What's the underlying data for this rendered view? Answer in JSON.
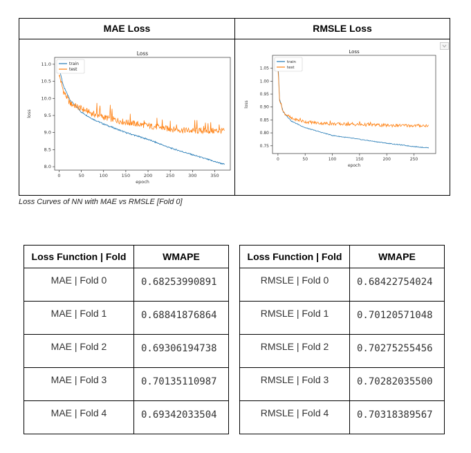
{
  "comparison": {
    "headers": [
      "MAE Loss",
      "RMSLE Loss"
    ],
    "caption": "Loss Curves of NN with MAE vs RMSLE [Fold 0]"
  },
  "chart_data": [
    {
      "type": "line",
      "title": "Loss",
      "xlabel": "epoch",
      "ylabel": "loss",
      "xlim": [
        -10,
        385
      ],
      "ylim": [
        7.9,
        11.2
      ],
      "xticks": [
        0,
        50,
        100,
        150,
        200,
        250,
        300,
        350
      ],
      "yticks": [
        8.0,
        8.5,
        9.0,
        9.5,
        10.0,
        10.5,
        11.0
      ],
      "ytick_labels": [
        "8.0",
        "8.5",
        "9.0",
        "9.5",
        "10.0",
        "10.5",
        "11.0"
      ],
      "legend": [
        "train",
        "test"
      ],
      "legend_position": "top-left",
      "series": [
        {
          "name": "train",
          "color": "#1f77b4",
          "x": [
            0,
            10,
            25,
            50,
            75,
            100,
            150,
            200,
            250,
            300,
            350,
            372
          ],
          "y": [
            10.9,
            10.35,
            9.95,
            9.6,
            9.4,
            9.25,
            9.0,
            8.8,
            8.55,
            8.35,
            8.15,
            8.07
          ]
        },
        {
          "name": "test",
          "color": "#ff7f0e",
          "x": [
            0,
            10,
            25,
            50,
            75,
            100,
            150,
            200,
            250,
            300,
            350,
            372
          ],
          "y": [
            10.7,
            10.2,
            9.85,
            9.7,
            9.55,
            9.45,
            9.3,
            9.2,
            9.1,
            9.05,
            9.05,
            9.05
          ]
        }
      ]
    },
    {
      "type": "line",
      "title": "Loss",
      "xlabel": "epoch",
      "ylabel": "loss",
      "xlim": [
        -10,
        290
      ],
      "ylim": [
        0.72,
        1.1
      ],
      "xticks": [
        0,
        50,
        100,
        150,
        200,
        250
      ],
      "yticks": [
        0.75,
        0.8,
        0.85,
        0.9,
        0.95,
        1.0,
        1.05
      ],
      "ytick_labels": [
        "0.75",
        "0.80",
        "0.85",
        "0.90",
        "0.95",
        "1.00",
        "1.05"
      ],
      "legend": [
        "train",
        "test"
      ],
      "legend_position": "top-left",
      "series": [
        {
          "name": "train",
          "color": "#1f77b4",
          "x": [
            0,
            3,
            10,
            25,
            50,
            75,
            100,
            150,
            200,
            250,
            277
          ],
          "y": [
            1.08,
            0.93,
            0.88,
            0.845,
            0.82,
            0.805,
            0.79,
            0.775,
            0.76,
            0.747,
            0.742
          ]
        },
        {
          "name": "test",
          "color": "#ff7f0e",
          "x": [
            0,
            3,
            10,
            25,
            50,
            75,
            100,
            150,
            200,
            250,
            277
          ],
          "y": [
            1.05,
            0.93,
            0.88,
            0.855,
            0.843,
            0.838,
            0.835,
            0.832,
            0.829,
            0.828,
            0.828
          ]
        }
      ]
    }
  ],
  "tables": [
    {
      "headers": [
        "Loss Function | Fold",
        "WMAPE"
      ],
      "rows": [
        [
          "MAE | Fold 0",
          "0.68253990891"
        ],
        [
          "MAE | Fold 1",
          "0.68841876864"
        ],
        [
          "MAE | Fold 2",
          "0.69306194738"
        ],
        [
          "MAE | Fold 3",
          "0.70135110987"
        ],
        [
          "MAE | Fold 4",
          "0.69342033504"
        ]
      ]
    },
    {
      "headers": [
        "Loss Function | Fold",
        "WMAPE"
      ],
      "rows": [
        [
          "RMSLE | Fold 0",
          "0.68422754024"
        ],
        [
          "RMSLE | Fold 1",
          "0.70120571048"
        ],
        [
          "RMSLE | Fold 2",
          "0.70275255456"
        ],
        [
          "RMSLE | Fold 3",
          "0.70282035500"
        ],
        [
          "RMSLE | Fold 4",
          "0.70318389567"
        ]
      ]
    }
  ],
  "icons": {
    "dropdown": "chevron-down-icon"
  },
  "colors": {
    "train": "#1f77b4",
    "test": "#ff7f0e",
    "border": "#000000"
  }
}
